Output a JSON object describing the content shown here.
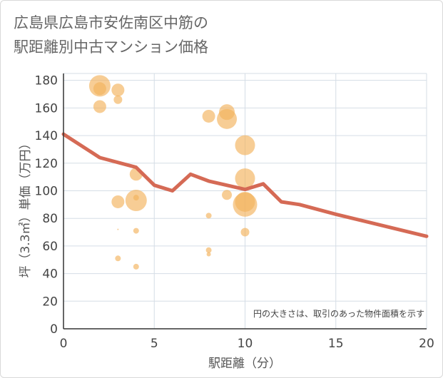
{
  "chart_data": {
    "type": "scatter",
    "title": [
      "広島県広島市安佐南区中筋の",
      "駅距離別中古マンション価格"
    ],
    "xlabel": "駅距離（分）",
    "ylabel": "坪（3.3㎡）単価（万円）",
    "xlim": [
      0,
      20
    ],
    "ylim": [
      0,
      185
    ],
    "xticks": [
      0,
      5,
      10,
      15,
      20
    ],
    "yticks": [
      0,
      20,
      40,
      60,
      80,
      100,
      120,
      140,
      160,
      180
    ],
    "grid": true,
    "note": "円の大きさは、取引のあった物件面積を示す",
    "colors": {
      "bubble": "#f2b25c",
      "trend": "#d56a55",
      "grid": "#d5dde6",
      "axis": "#333333"
    },
    "bubbles": [
      {
        "x": 2,
        "y": 176,
        "size": 15
      },
      {
        "x": 2,
        "y": 174,
        "size": 9
      },
      {
        "x": 2,
        "y": 161,
        "size": 9
      },
      {
        "x": 3,
        "y": 173,
        "size": 9
      },
      {
        "x": 3,
        "y": 166,
        "size": 6
      },
      {
        "x": 3,
        "y": 92,
        "size": 9
      },
      {
        "x": 3,
        "y": 72,
        "size": 1
      },
      {
        "x": 3,
        "y": 51,
        "size": 4
      },
      {
        "x": 4,
        "y": 112,
        "size": 9
      },
      {
        "x": 4,
        "y": 95,
        "size": 4
      },
      {
        "x": 4,
        "y": 93,
        "size": 15
      },
      {
        "x": 4,
        "y": 71,
        "size": 4
      },
      {
        "x": 4,
        "y": 45,
        "size": 4
      },
      {
        "x": 8,
        "y": 154,
        "size": 9
      },
      {
        "x": 8,
        "y": 82,
        "size": 4
      },
      {
        "x": 8,
        "y": 57,
        "size": 4
      },
      {
        "x": 8,
        "y": 54,
        "size": 3
      },
      {
        "x": 9,
        "y": 157,
        "size": 11
      },
      {
        "x": 9,
        "y": 152,
        "size": 14
      },
      {
        "x": 9,
        "y": 97,
        "size": 7
      },
      {
        "x": 10,
        "y": 133,
        "size": 14
      },
      {
        "x": 10,
        "y": 109,
        "size": 14
      },
      {
        "x": 10,
        "y": 92,
        "size": 14
      },
      {
        "x": 10,
        "y": 90,
        "size": 17
      },
      {
        "x": 10,
        "y": 70,
        "size": 6
      }
    ],
    "trend": {
      "x": [
        0,
        2,
        4,
        5,
        6,
        7,
        8,
        10,
        11,
        12,
        13,
        15,
        20
      ],
      "y": [
        141,
        124,
        117,
        104,
        100,
        112,
        107,
        101,
        105,
        92,
        90,
        83,
        67
      ]
    }
  }
}
